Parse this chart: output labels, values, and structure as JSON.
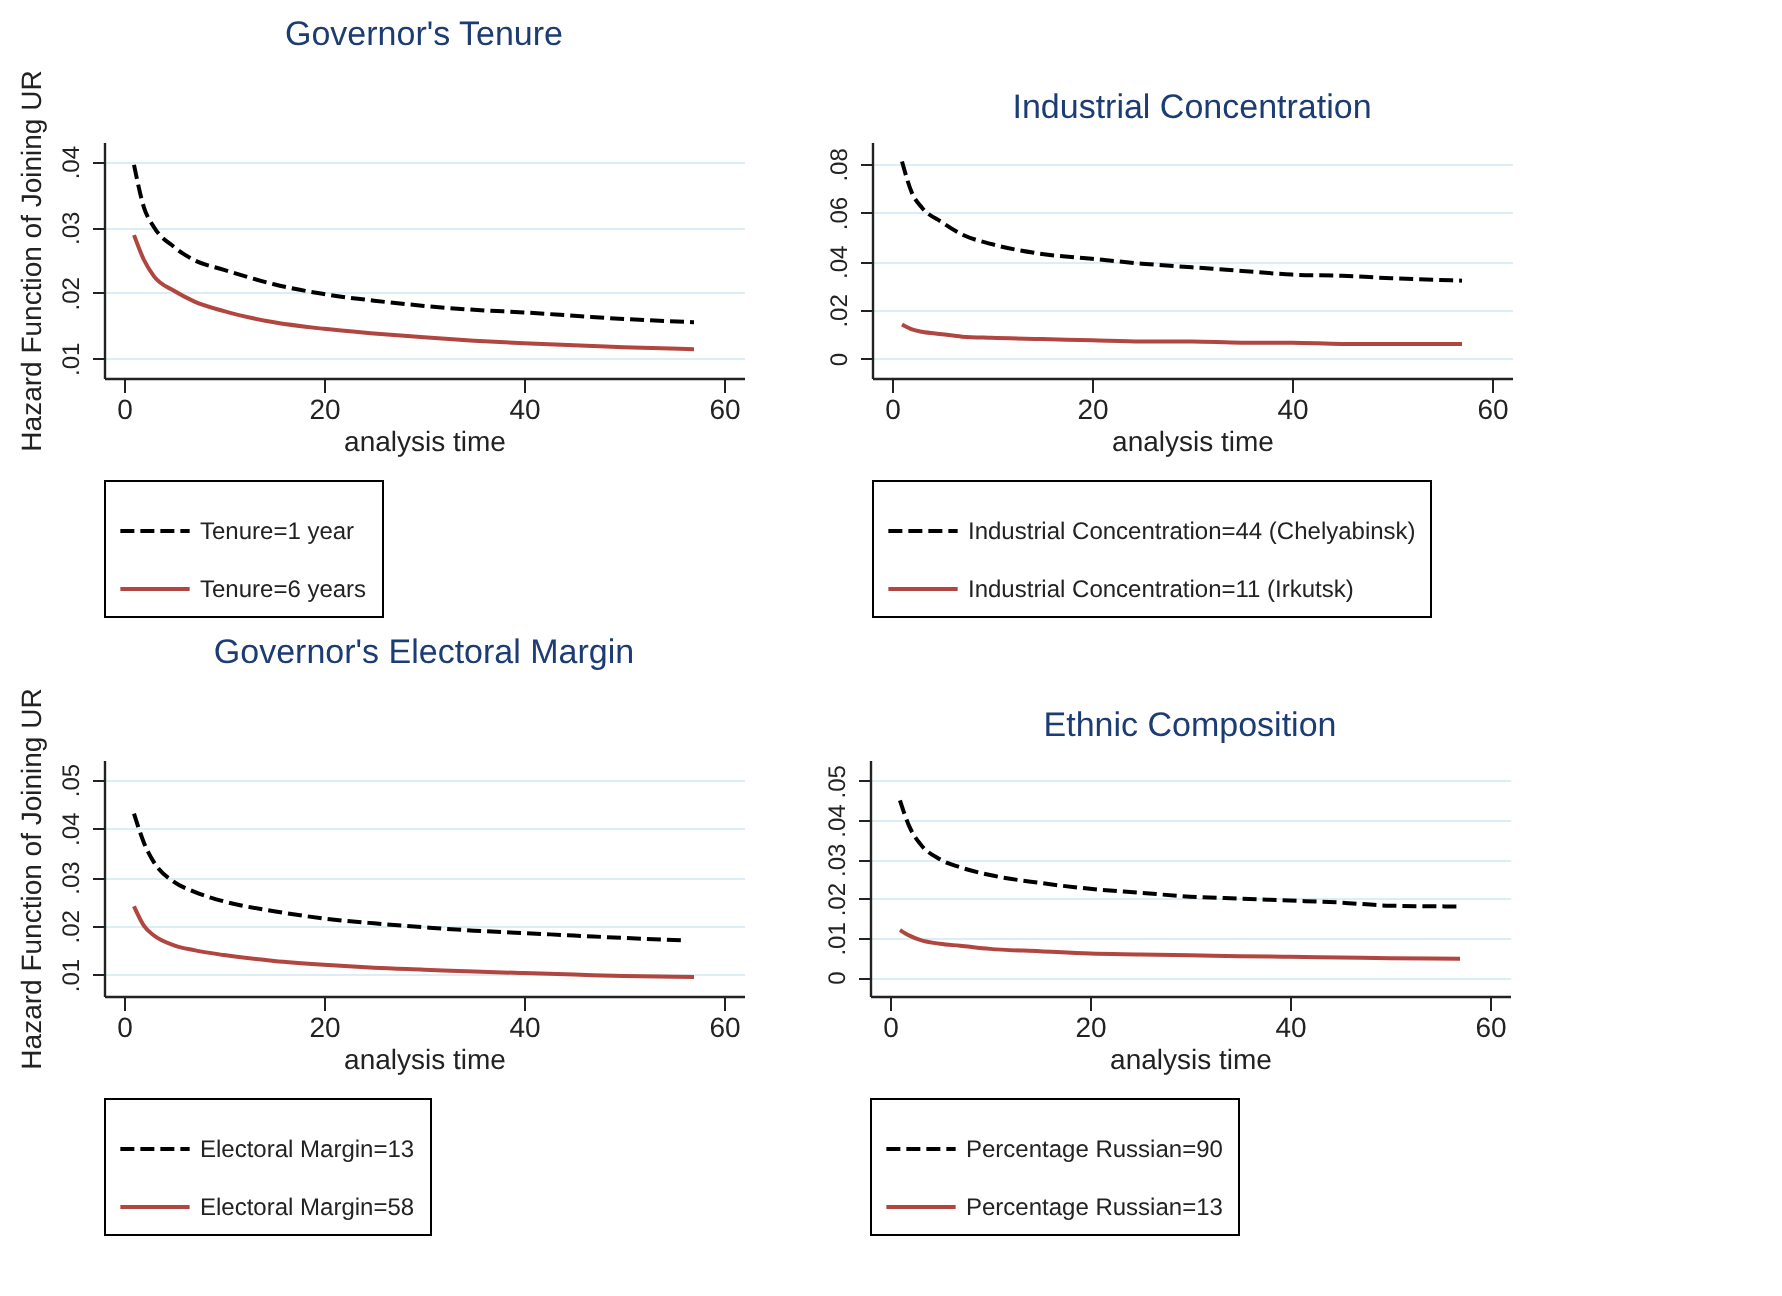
{
  "chart_data": [
    {
      "type": "line",
      "title": "Governor's Tenure",
      "xlabel": "analysis time",
      "ylabel": "Hazard Function of Joining UR",
      "x": [
        1,
        2,
        3,
        5,
        7,
        10,
        15,
        20,
        25,
        30,
        35,
        40,
        45,
        50,
        57
      ],
      "xlim": [
        -2,
        62
      ],
      "xticks": [
        0,
        20,
        40,
        60
      ],
      "ylim": [
        0.007,
        0.043
      ],
      "yticks": [
        {
          "value": 0.01,
          "label": ".01"
        },
        {
          "value": 0.02,
          "label": ".02"
        },
        {
          "value": 0.03,
          "label": ".03"
        },
        {
          "value": 0.04,
          "label": ".04"
        }
      ],
      "grid": "y",
      "legend": "bottom",
      "marker": "none",
      "series": [
        {
          "name": "Tenure=1 year",
          "color": "#000000",
          "line_style": "dashed",
          "values": [
            0.0395,
            0.033,
            0.03,
            0.027,
            0.025,
            0.0235,
            0.0213,
            0.0198,
            0.0188,
            0.018,
            0.0174,
            0.017,
            0.0165,
            0.016,
            0.0155
          ]
        },
        {
          "name": "Tenure=6 years",
          "color": "#b0463f",
          "line_style": "solid",
          "values": [
            0.0288,
            0.025,
            0.0225,
            0.0203,
            0.0187,
            0.0172,
            0.0155,
            0.0145,
            0.0138,
            0.0132,
            0.0127,
            0.0123,
            0.012,
            0.0117,
            0.0114
          ]
        }
      ]
    },
    {
      "type": "line",
      "title": "Industrial Concentration",
      "xlabel": "analysis time",
      "x": [
        1,
        2,
        3,
        5,
        7,
        10,
        15,
        20,
        25,
        30,
        35,
        40,
        45,
        50,
        57
      ],
      "xlim": [
        -2,
        62
      ],
      "xticks": [
        0,
        20,
        40,
        60
      ],
      "ylim": [
        -0.008,
        0.089
      ],
      "yticks": [
        0,
        {
          "value": 0.02,
          "label": ".02"
        },
        {
          "value": 0.04,
          "label": ".04"
        },
        {
          "value": 0.06,
          "label": ".06"
        },
        {
          "value": 0.08,
          "label": ".08"
        }
      ],
      "grid": "y",
      "legend": "bottom",
      "marker": "none",
      "series": [
        {
          "name": "Industrial Concentration=44 (Chelyabinsk)",
          "color": "#000000",
          "line_style": "dashed",
          "values": [
            0.081,
            0.068,
            0.062,
            0.056,
            0.051,
            0.047,
            0.043,
            0.041,
            0.039,
            0.0375,
            0.036,
            0.0345,
            0.034,
            0.033,
            0.032
          ]
        },
        {
          "name": "Industrial Concentration=11 (Irkutsk)",
          "color": "#b0463f",
          "line_style": "solid",
          "values": [
            0.014,
            0.012,
            0.011,
            0.01,
            0.009,
            0.0085,
            0.008,
            0.0075,
            0.007,
            0.007,
            0.0065,
            0.0065,
            0.006,
            0.006,
            0.006
          ]
        }
      ]
    },
    {
      "type": "line",
      "title": "Governor's Electoral Margin",
      "xlabel": "analysis time",
      "ylabel": "Hazard Function of Joining UR",
      "x": [
        1,
        2,
        3,
        5,
        7,
        10,
        15,
        20,
        25,
        30,
        35,
        40,
        45,
        50,
        57
      ],
      "xlim": [
        -2,
        62
      ],
      "xticks": [
        0,
        20,
        40,
        60
      ],
      "ylim": [
        0.0056,
        0.054
      ],
      "yticks": [
        {
          "value": 0.01,
          "label": ".01"
        },
        {
          "value": 0.02,
          "label": ".02"
        },
        {
          "value": 0.03,
          "label": ".03"
        },
        {
          "value": 0.04,
          "label": ".04"
        },
        {
          "value": 0.05,
          "label": ".05"
        }
      ],
      "grid": "y",
      "legend": "bottom",
      "marker": "none",
      "series": [
        {
          "name": "Electoral Margin=13",
          "color": "#000000",
          "line_style": "dashed",
          "x": [
            1,
            2,
            3,
            5,
            7,
            10,
            15,
            20,
            25,
            30,
            35,
            40,
            45,
            50,
            56
          ],
          "values": [
            0.043,
            0.037,
            0.033,
            0.029,
            0.027,
            0.025,
            0.023,
            0.0215,
            0.0205,
            0.0197,
            0.019,
            0.0185,
            0.018,
            0.0175,
            0.017
          ]
        },
        {
          "name": "Electoral Margin=58",
          "color": "#b0463f",
          "line_style": "solid",
          "values": [
            0.024,
            0.02,
            0.018,
            0.016,
            0.015,
            0.014,
            0.0128,
            0.012,
            0.0114,
            0.011,
            0.0106,
            0.0103,
            0.01,
            0.0097,
            0.0095
          ]
        }
      ]
    },
    {
      "type": "line",
      "title": "Ethnic Composition",
      "xlabel": "analysis time",
      "x": [
        1,
        2,
        3,
        5,
        7,
        10,
        15,
        20,
        25,
        30,
        35,
        40,
        45,
        50,
        57
      ],
      "xlim": [
        -2,
        62
      ],
      "xticks": [
        0,
        20,
        40,
        60
      ],
      "ylim": [
        -0.0048,
        0.0553
      ],
      "yticks": [
        0,
        {
          "value": 0.01,
          "label": ".01"
        },
        {
          "value": 0.02,
          "label": ".02"
        },
        {
          "value": 0.03,
          "label": ".03"
        },
        {
          "value": 0.04,
          "label": ".04"
        },
        {
          "value": 0.05,
          "label": ".05"
        }
      ],
      "grid": "y",
      "legend": "bottom",
      "marker": "none",
      "series": [
        {
          "name": "Percentage Russian=90",
          "color": "#000000",
          "line_style": "dashed",
          "values": [
            0.045,
            0.038,
            0.034,
            0.03,
            0.028,
            0.026,
            0.024,
            0.0225,
            0.0215,
            0.0205,
            0.02,
            0.0195,
            0.019,
            0.0182,
            0.018
          ]
        },
        {
          "name": "Percentage Russian=13",
          "color": "#b0463f",
          "line_style": "solid",
          "values": [
            0.012,
            0.0105,
            0.0095,
            0.0085,
            0.008,
            0.0072,
            0.0066,
            0.006,
            0.0058,
            0.0056,
            0.0053,
            0.0052,
            0.005,
            0.0048,
            0.0047
          ]
        }
      ]
    }
  ]
}
